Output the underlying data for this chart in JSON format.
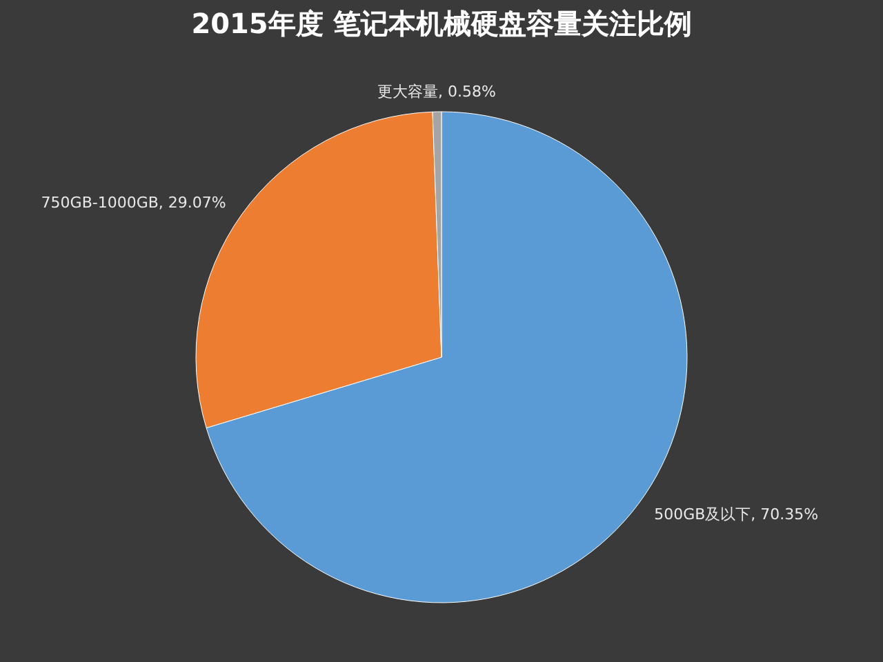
{
  "chart_data": {
    "type": "pie",
    "title": "2015年度 笔记本机械硬盘容量关注比例",
    "categories": [
      "500GB及以下",
      "750GB-1000GB",
      "更大容量"
    ],
    "values": [
      70.35,
      29.07,
      0.58
    ],
    "value_labels": [
      "70.35%",
      "29.07%",
      "0.58%"
    ],
    "colors": [
      "#5b9bd5",
      "#ed7d31",
      "#a5a5a5"
    ],
    "legend": false
  }
}
